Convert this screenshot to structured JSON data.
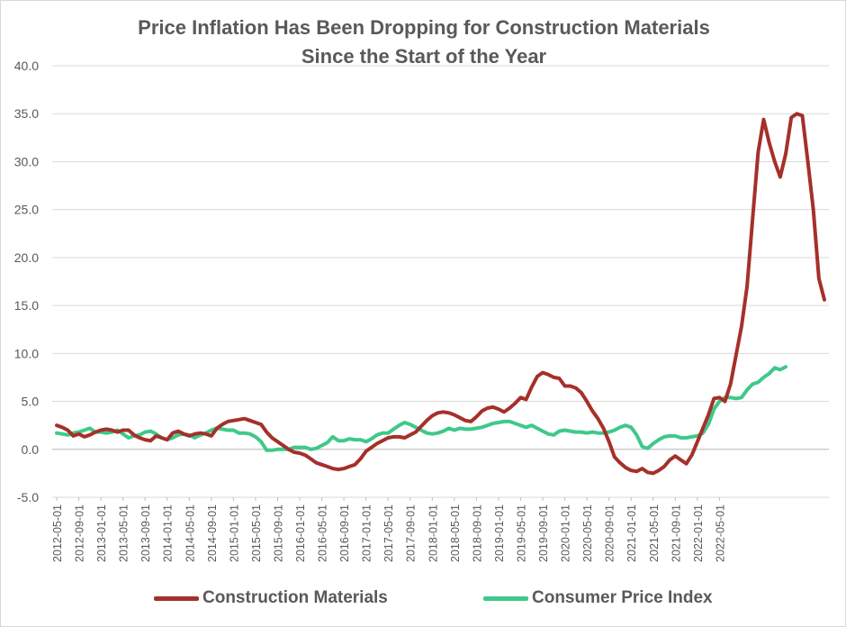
{
  "chart_data": {
    "type": "line",
    "title_lines": [
      "Price Inflation Has Been Dropping for Construction Materials",
      "Since the Start of the Year"
    ],
    "xlabel": "",
    "ylabel": "",
    "ylim": [
      -5,
      40
    ],
    "y_ticks": [
      "40.0",
      "35.0",
      "30.0",
      "25.0",
      "20.0",
      "15.0",
      "10.0",
      "5.0",
      "0.0",
      "-5.0"
    ],
    "y_tick_values": [
      40,
      35,
      30,
      25,
      20,
      15,
      10,
      5,
      0,
      -5
    ],
    "grid": "horizontal",
    "legend_position": "bottom",
    "x_start": "2012-05",
    "x_tick_labels": [
      "2012-05-01",
      "2012-09-01",
      "2013-01-01",
      "2013-05-01",
      "2013-09-01",
      "2014-01-01",
      "2014-05-01",
      "2014-09-01",
      "2015-01-01",
      "2015-05-01",
      "2015-09-01",
      "2016-01-01",
      "2016-05-01",
      "2016-09-01",
      "2017-01-01",
      "2017-05-01",
      "2017-09-01",
      "2018-01-01",
      "2018-05-01",
      "2018-09-01",
      "2019-01-01",
      "2019-05-01",
      "2019-09-01",
      "2020-01-01",
      "2020-05-01",
      "2020-09-01",
      "2021-01-01",
      "2021-05-01",
      "2021-09-01",
      "2022-01-01",
      "2022-05-01"
    ],
    "series": [
      {
        "name": "Construction Materials",
        "color": "#a5302a",
        "values": [
          2.5,
          2.3,
          2.0,
          1.4,
          1.6,
          1.3,
          1.5,
          1.8,
          2.0,
          2.1,
          2.0,
          1.8,
          2.0,
          2.0,
          1.5,
          1.2,
          1.0,
          0.9,
          1.4,
          1.2,
          1.0,
          1.7,
          1.9,
          1.6,
          1.4,
          1.6,
          1.7,
          1.6,
          1.4,
          2.2,
          2.6,
          2.9,
          3.0,
          3.1,
          3.2,
          3.0,
          2.8,
          2.6,
          1.8,
          1.2,
          0.8,
          0.4,
          0.0,
          -0.3,
          -0.4,
          -0.6,
          -1.0,
          -1.4,
          -1.6,
          -1.8,
          -2.0,
          -2.1,
          -2.0,
          -1.8,
          -1.6,
          -1.0,
          -0.2,
          0.2,
          0.6,
          0.9,
          1.2,
          1.3,
          1.3,
          1.2,
          1.5,
          1.8,
          2.4,
          3.0,
          3.5,
          3.8,
          3.9,
          3.8,
          3.6,
          3.3,
          3.0,
          2.9,
          3.4,
          4.0,
          4.3,
          4.4,
          4.2,
          3.9,
          4.3,
          4.8,
          5.4,
          5.2,
          6.5,
          7.6,
          8.0,
          7.8,
          7.5,
          7.4,
          6.6,
          6.6,
          6.4,
          5.9,
          5.0,
          4.0,
          3.2,
          2.2,
          0.8,
          -0.8,
          -1.4,
          -1.9,
          -2.2,
          -2.3,
          -2.0,
          -2.4,
          -2.5,
          -2.2,
          -1.8,
          -1.1,
          -0.7,
          -1.1,
          -1.5,
          -0.6,
          0.8,
          2.2,
          3.6,
          5.3,
          5.4,
          5.0,
          6.8,
          9.8,
          12.8,
          17.0,
          24.0,
          31.0,
          34.4,
          32.0,
          30.0,
          28.4,
          30.8,
          34.6,
          35.0,
          34.8,
          30.0,
          25.0,
          17.8,
          15.6
        ]
      },
      {
        "name": "Consumer Price Index",
        "color": "#3ec98a",
        "values": [
          1.7,
          1.6,
          1.5,
          1.7,
          1.8,
          2.0,
          2.2,
          1.8,
          1.8,
          1.7,
          1.8,
          2.0,
          1.6,
          1.2,
          1.4,
          1.5,
          1.8,
          1.9,
          1.6,
          1.2,
          1.0,
          1.2,
          1.5,
          1.6,
          1.5,
          1.2,
          1.5,
          1.7,
          2.0,
          2.2,
          2.1,
          2.0,
          2.0,
          1.7,
          1.7,
          1.6,
          1.3,
          0.8,
          -0.1,
          -0.1,
          0.0,
          0.0,
          0.0,
          0.2,
          0.2,
          0.2,
          0.0,
          0.1,
          0.4,
          0.7,
          1.3,
          0.9,
          0.9,
          1.1,
          1.0,
          1.0,
          0.8,
          1.1,
          1.5,
          1.7,
          1.7,
          2.1,
          2.5,
          2.8,
          2.6,
          2.3,
          2.0,
          1.7,
          1.6,
          1.7,
          1.9,
          2.2,
          2.0,
          2.2,
          2.1,
          2.1,
          2.2,
          2.3,
          2.5,
          2.7,
          2.8,
          2.9,
          2.9,
          2.7,
          2.5,
          2.3,
          2.5,
          2.2,
          1.9,
          1.6,
          1.5,
          1.9,
          2.0,
          1.9,
          1.8,
          1.8,
          1.7,
          1.8,
          1.7,
          1.7,
          1.8,
          2.0,
          2.3,
          2.5,
          2.3,
          1.5,
          0.3,
          0.1,
          0.6,
          1.0,
          1.3,
          1.4,
          1.4,
          1.2,
          1.2,
          1.3,
          1.4,
          1.7,
          2.6,
          4.2,
          5.0,
          5.4,
          5.4,
          5.3,
          5.4,
          6.2,
          6.8,
          7.0,
          7.5,
          7.9,
          8.5,
          8.3,
          8.6
        ]
      }
    ]
  }
}
